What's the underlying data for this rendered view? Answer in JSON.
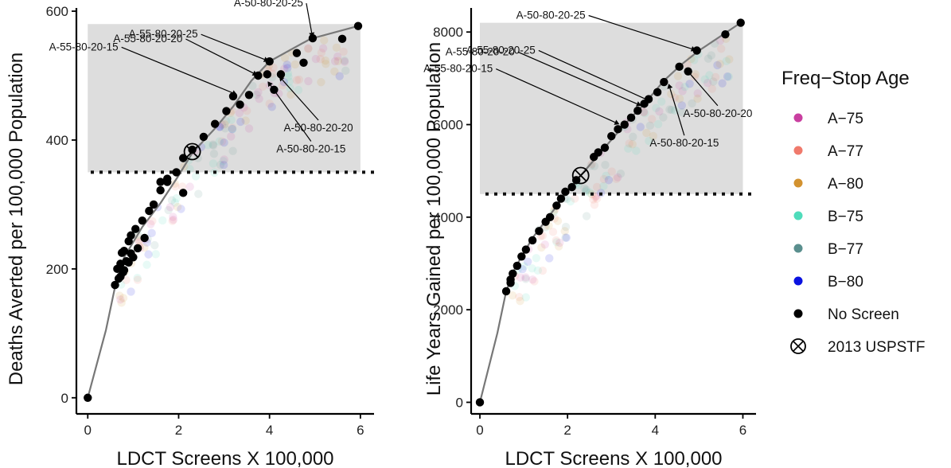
{
  "chart_data": [
    {
      "type": "scatter",
      "xlabel": "LDCT Screens X 100,000",
      "ylabel": "Deaths Averted per 100,000 Population",
      "xlim": [
        -0.25,
        6.3
      ],
      "ylim": [
        -25,
        605
      ],
      "xticks": [
        0,
        2,
        4,
        6
      ],
      "yticks": [
        0,
        200,
        400,
        600
      ],
      "shaded_region": {
        "x": [
          0,
          6
        ],
        "y": [
          350,
          580
        ]
      },
      "threshold_y": 350,
      "frontier": [
        [
          0,
          0
        ],
        [
          0.4,
          105
        ],
        [
          0.6,
          172
        ],
        [
          0.8,
          218
        ],
        [
          1.2,
          265
        ],
        [
          1.6,
          302
        ],
        [
          2.0,
          345
        ],
        [
          2.3,
          380
        ],
        [
          2.8,
          418
        ],
        [
          3.2,
          452
        ],
        [
          3.6,
          492
        ],
        [
          4.0,
          522
        ],
        [
          4.9,
          557
        ],
        [
          5.95,
          577
        ]
      ],
      "series": [
        {
          "name": "B–80",
          "points": [
            [
              0.65,
              200
            ],
            [
              0.72,
              208
            ],
            [
              0.75,
              225
            ],
            [
              0.8,
              228
            ],
            [
              0.9,
              243
            ],
            [
              0.95,
              252
            ],
            [
              1.05,
              262
            ],
            [
              1.2,
              275
            ],
            [
              1.35,
              290
            ],
            [
              1.45,
              300
            ],
            [
              1.6,
              322
            ],
            [
              1.75,
              335
            ],
            [
              1.95,
              350
            ],
            [
              2.1,
              372
            ],
            [
              2.3,
              385
            ],
            [
              2.55,
              405
            ]
          ]
        },
        {
          "name": "B–77",
          "points": [
            [
              0.72,
              188
            ],
            [
              0.8,
              198
            ],
            [
              0.85,
              212
            ],
            [
              0.95,
              224
            ],
            [
              2.1,
              318
            ]
          ]
        },
        {
          "name": "B–75",
          "points": [
            [
              0.6,
              175
            ],
            [
              0.68,
              185
            ],
            [
              0.78,
              195
            ],
            [
              0.9,
              210
            ],
            [
              1.0,
              218
            ],
            [
              1.1,
              232
            ],
            [
              1.25,
              248
            ]
          ]
        },
        {
          "name": "A–80",
          "points": [
            [
              1.6,
              335
            ],
            [
              1.75,
              340
            ],
            [
              2.8,
              425
            ],
            [
              3.05,
              445
            ],
            [
              3.2,
              468
            ],
            [
              3.35,
              455
            ],
            [
              3.55,
              470
            ],
            [
              3.75,
              500
            ],
            [
              4.0,
              522
            ],
            [
              3.95,
              502
            ],
            [
              4.1,
              478
            ],
            [
              4.25,
              502
            ],
            [
              4.6,
              535
            ],
            [
              4.75,
              520
            ],
            [
              4.95,
              558
            ],
            [
              5.6,
              557
            ],
            [
              5.95,
              577
            ]
          ]
        },
        {
          "name": "No Screen",
          "points": [
            [
              0,
              0
            ]
          ]
        },
        {
          "name": "2013 USPSTF",
          "points": [
            [
              2.3,
              382
            ]
          ]
        }
      ],
      "annotations": [
        {
          "label": "A-50-80-20-25",
          "x": 4.95,
          "y": 558
        },
        {
          "label": "A-55-80-20-25",
          "x": 4.0,
          "y": 522
        },
        {
          "label": "A-55-80-20-20",
          "x": 3.75,
          "y": 500
        },
        {
          "label": "A-55-80-20-15",
          "x": 3.3,
          "y": 470
        },
        {
          "label": "A-50-80-20-20",
          "x": 4.2,
          "y": 500
        },
        {
          "label": "A-50-80-20-15",
          "x": 3.95,
          "y": 492
        }
      ]
    },
    {
      "type": "scatter",
      "xlabel": "LDCT Screens X 100,000",
      "ylabel": "Life Years Gained per 100,000 Population",
      "xlim": [
        -0.2,
        6.3
      ],
      "ylim": [
        -250,
        8520
      ],
      "xticks": [
        0,
        2,
        4,
        6
      ],
      "yticks": [
        0,
        2000,
        4000,
        6000,
        8000
      ],
      "shaded_region": {
        "x": [
          0,
          6
        ],
        "y": [
          4500,
          8200
        ]
      },
      "threshold_y": 4500,
      "frontier": [
        [
          0,
          0
        ],
        [
          0.4,
          1500
        ],
        [
          0.6,
          2400
        ],
        [
          0.8,
          2900
        ],
        [
          1.2,
          3550
        ],
        [
          1.6,
          4050
        ],
        [
          2.0,
          4550
        ],
        [
          2.3,
          4900
        ],
        [
          2.8,
          5450
        ],
        [
          3.3,
          6000
        ],
        [
          3.8,
          6500
        ],
        [
          4.2,
          6950
        ],
        [
          4.6,
          7300
        ],
        [
          5.0,
          7600
        ],
        [
          5.95,
          8200
        ]
      ],
      "series": [
        {
          "name": "B–80",
          "points": [
            [
              0.7,
              2650
            ],
            [
              0.75,
              2780
            ],
            [
              0.85,
              2950
            ],
            [
              0.95,
              3150
            ],
            [
              1.05,
              3300
            ],
            [
              1.2,
              3500
            ],
            [
              1.35,
              3700
            ],
            [
              1.5,
              3900
            ],
            [
              1.6,
              4000
            ],
            [
              1.75,
              4250
            ],
            [
              1.85,
              4400
            ],
            [
              1.95,
              4550
            ],
            [
              2.1,
              4650
            ],
            [
              2.2,
              4800
            ],
            [
              2.6,
              5300
            ],
            [
              2.7,
              5400
            ]
          ]
        },
        {
          "name": "B–75",
          "points": [
            [
              0.6,
              2400
            ],
            [
              0.7,
              2580
            ]
          ]
        },
        {
          "name": "A–80",
          "points": [
            [
              2.85,
              5500
            ],
            [
              3.0,
              5750
            ],
            [
              3.15,
              5900
            ],
            [
              3.3,
              6000
            ],
            [
              3.45,
              6150
            ],
            [
              3.6,
              6300
            ],
            [
              3.75,
              6450
            ],
            [
              3.85,
              6550
            ],
            [
              4.05,
              6700
            ],
            [
              4.2,
              6920
            ],
            [
              4.55,
              7250
            ],
            [
              4.75,
              7150
            ],
            [
              4.95,
              7600
            ],
            [
              5.6,
              7950
            ],
            [
              5.95,
              8200
            ]
          ]
        },
        {
          "name": "No Screen",
          "points": [
            [
              0,
              0
            ]
          ]
        },
        {
          "name": "2013 USPSTF",
          "points": [
            [
              2.3,
              4900
            ]
          ]
        }
      ],
      "annotations": [
        {
          "label": "A-50-80-20-25",
          "x": 4.95,
          "y": 7600
        },
        {
          "label": "A-55-80-20-25",
          "x": 3.9,
          "y": 6500
        },
        {
          "label": "A-55-80-20-20",
          "x": 3.7,
          "y": 6400
        },
        {
          "label": "A-55-80-20-15",
          "x": 3.2,
          "y": 6000
        },
        {
          "label": "A-50-80-20-20",
          "x": 4.7,
          "y": 7200
        },
        {
          "label": "A-50-80-20-15",
          "x": 4.3,
          "y": 6900
        }
      ]
    }
  ],
  "legend": {
    "title": "Freq−Stop Age",
    "items": [
      {
        "label": "A−75",
        "color": "#c93fa0",
        "marker": "dot"
      },
      {
        "label": "A−77",
        "color": "#f07a6c",
        "marker": "dot"
      },
      {
        "label": "A−80",
        "color": "#d3922f",
        "marker": "dot"
      },
      {
        "label": "B−75",
        "color": "#4fdcbb",
        "marker": "dot"
      },
      {
        "label": "B−77",
        "color": "#5a8f8e",
        "marker": "dot"
      },
      {
        "label": "B−80",
        "color": "#0a12e0",
        "marker": "dot"
      },
      {
        "label": "No Screen",
        "color": "#000000",
        "marker": "dot"
      },
      {
        "label": "2013 USPSTF",
        "color": "#000000",
        "marker": "circle-x"
      }
    ]
  },
  "colors": {
    "frontier": "#777777",
    "shade": "#dddddd",
    "threshold": "#111111"
  }
}
